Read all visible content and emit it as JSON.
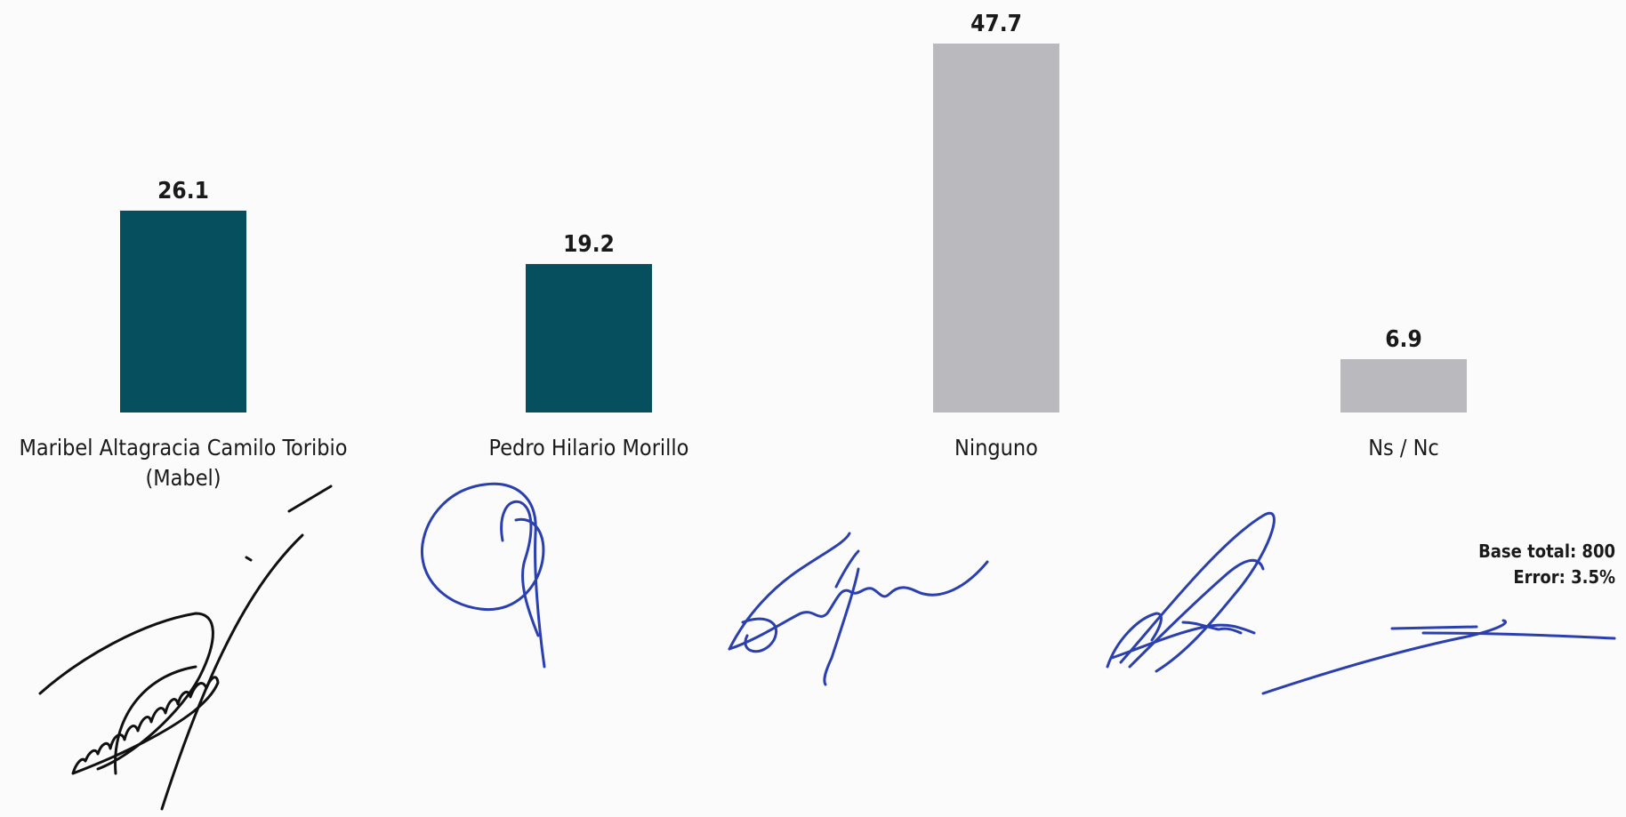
{
  "chart_data": {
    "type": "bar",
    "categories": [
      [
        "Maribel Altagracia Camilo Toribio",
        "(Mabel)"
      ],
      [
        "Pedro Hilario Morillo"
      ],
      [
        "Ninguno"
      ],
      [
        "Ns / Nc"
      ]
    ],
    "values": [
      26.1,
      19.2,
      47.7,
      6.9
    ],
    "value_labels": [
      "26.1",
      "19.2",
      "47.7",
      "6.9"
    ],
    "bar_colors": [
      "#054f5f",
      "#054f5f",
      "#b9b9be",
      "#b9b9be"
    ],
    "title": "",
    "xlabel": "",
    "ylabel": "",
    "ylim": [
      0,
      50
    ],
    "grid": false,
    "legend": "none"
  },
  "notes": {
    "base": "Base total: 800",
    "error": "Error: 3.5%"
  },
  "signatures": {
    "count": 5,
    "color": "#2a3fb0",
    "color_dark": "#111111"
  }
}
